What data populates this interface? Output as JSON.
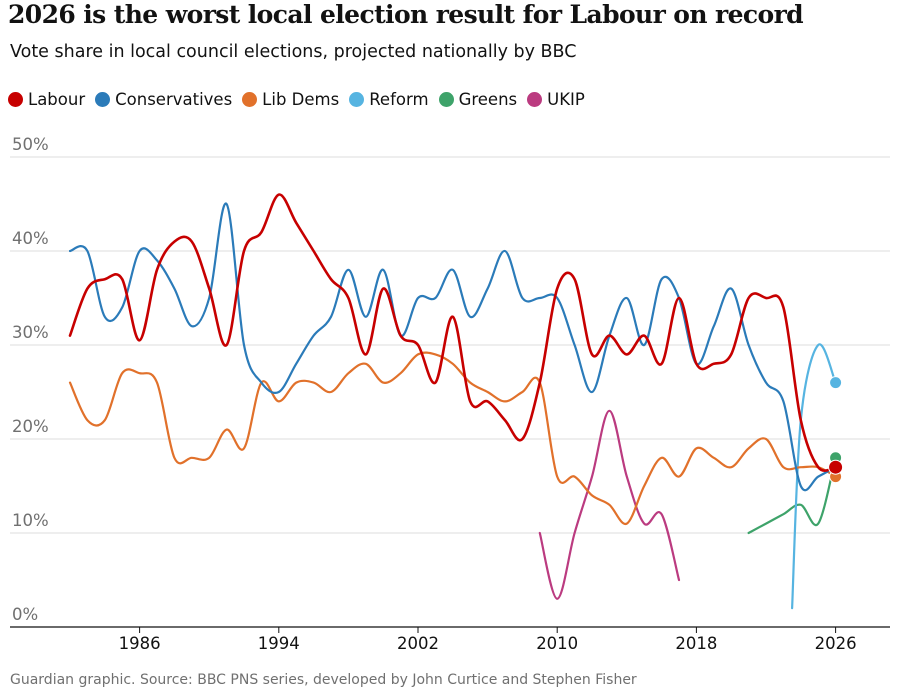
{
  "chart_data": {
    "type": "line",
    "title": "2026 is the worst local election result for Labour on record",
    "subtitle": "Vote share in local council elections, projected nationally by BBC",
    "source": "Guardian graphic. Source: BBC PNS series, developed by John Curtice and Stephen Fisher",
    "xlim": [
      1982,
      2027.5
    ],
    "ylim": [
      0,
      50
    ],
    "yticks": [
      0,
      10,
      20,
      30,
      40,
      50
    ],
    "ytick_labels": [
      "0%",
      "10%",
      "20%",
      "30%",
      "40%",
      "50%"
    ],
    "xticks": [
      1986,
      1994,
      2002,
      2010,
      2018,
      2026
    ],
    "xtick_labels": [
      "1986",
      "1994",
      "2002",
      "2010",
      "2018",
      "2026"
    ],
    "grid": true,
    "legend_position": "top-left",
    "series": [
      {
        "name": "Labour",
        "color": "#c70000",
        "points": [
          [
            1982,
            31
          ],
          [
            1983,
            36
          ],
          [
            1984,
            37
          ],
          [
            1985,
            37
          ],
          [
            1986,
            30.5
          ],
          [
            1987,
            38
          ],
          [
            1988,
            41
          ],
          [
            1989,
            41
          ],
          [
            1990,
            36
          ],
          [
            1991,
            30
          ],
          [
            1992,
            40
          ],
          [
            1993,
            42
          ],
          [
            1994,
            46
          ],
          [
            1995,
            43
          ],
          [
            1996,
            40
          ],
          [
            1997,
            37
          ],
          [
            1998,
            35
          ],
          [
            1999,
            29
          ],
          [
            2000,
            36
          ],
          [
            2001,
            31
          ],
          [
            2002,
            30
          ],
          [
            2003,
            26
          ],
          [
            2004,
            33
          ],
          [
            2005,
            24
          ],
          [
            2006,
            24
          ],
          [
            2007,
            22
          ],
          [
            2008,
            20
          ],
          [
            2009,
            26
          ],
          [
            2010,
            36
          ],
          [
            2011,
            37
          ],
          [
            2012,
            29
          ],
          [
            2013,
            31
          ],
          [
            2014,
            29
          ],
          [
            2015,
            31
          ],
          [
            2016,
            28
          ],
          [
            2017,
            35
          ],
          [
            2018,
            28
          ],
          [
            2019,
            28
          ],
          [
            2020,
            29
          ],
          [
            2021,
            35
          ],
          [
            2022,
            35
          ],
          [
            2023,
            34
          ],
          [
            2024,
            22
          ],
          [
            2025,
            17
          ],
          [
            2026,
            17
          ]
        ],
        "end_value": 17
      },
      {
        "name": "Conservatives",
        "color": "#2b7bb9",
        "points": [
          [
            1982,
            40
          ],
          [
            1983,
            40
          ],
          [
            1984,
            33
          ],
          [
            1985,
            34
          ],
          [
            1986,
            40
          ],
          [
            1987,
            39
          ],
          [
            1988,
            36
          ],
          [
            1989,
            32
          ],
          [
            1990,
            35
          ],
          [
            1991,
            45
          ],
          [
            1992,
            30
          ],
          [
            1993,
            26
          ],
          [
            1994,
            25
          ],
          [
            1995,
            28
          ],
          [
            1996,
            31
          ],
          [
            1997,
            33
          ],
          [
            1998,
            38
          ],
          [
            1999,
            33
          ],
          [
            2000,
            38
          ],
          [
            2001,
            31
          ],
          [
            2002,
            35
          ],
          [
            2003,
            35
          ],
          [
            2004,
            38
          ],
          [
            2005,
            33
          ],
          [
            2006,
            36
          ],
          [
            2007,
            40
          ],
          [
            2008,
            35
          ],
          [
            2009,
            35
          ],
          [
            2010,
            35
          ],
          [
            2011,
            30
          ],
          [
            2012,
            25
          ],
          [
            2013,
            31
          ],
          [
            2014,
            35
          ],
          [
            2015,
            30
          ],
          [
            2016,
            37
          ],
          [
            2017,
            35
          ],
          [
            2018,
            28
          ],
          [
            2019,
            32
          ],
          [
            2020,
            36
          ],
          [
            2021,
            30
          ],
          [
            2022,
            26
          ],
          [
            2023,
            24
          ],
          [
            2024,
            15
          ],
          [
            2025,
            16
          ],
          [
            2026,
            17
          ]
        ],
        "end_value": 17
      },
      {
        "name": "Lib Dems",
        "color": "#e1712b",
        "points": [
          [
            1982,
            26
          ],
          [
            1983,
            22
          ],
          [
            1984,
            22
          ],
          [
            1985,
            27
          ],
          [
            1986,
            27
          ],
          [
            1987,
            26
          ],
          [
            1988,
            18
          ],
          [
            1989,
            18
          ],
          [
            1990,
            18
          ],
          [
            1991,
            21
          ],
          [
            1992,
            19
          ],
          [
            1993,
            26
          ],
          [
            1994,
            24
          ],
          [
            1995,
            26
          ],
          [
            1996,
            26
          ],
          [
            1997,
            25
          ],
          [
            1998,
            27
          ],
          [
            1999,
            28
          ],
          [
            2000,
            26
          ],
          [
            2001,
            27
          ],
          [
            2002,
            29
          ],
          [
            2003,
            29
          ],
          [
            2004,
            28
          ],
          [
            2005,
            26
          ],
          [
            2006,
            25
          ],
          [
            2007,
            24
          ],
          [
            2008,
            25
          ],
          [
            2009,
            26
          ],
          [
            2010,
            16
          ],
          [
            2011,
            16
          ],
          [
            2012,
            14
          ],
          [
            2013,
            13
          ],
          [
            2014,
            11
          ],
          [
            2015,
            15
          ],
          [
            2016,
            18
          ],
          [
            2017,
            16
          ],
          [
            2018,
            19
          ],
          [
            2019,
            18
          ],
          [
            2020,
            17
          ],
          [
            2021,
            19
          ],
          [
            2022,
            20
          ],
          [
            2023,
            17
          ],
          [
            2024,
            17
          ],
          [
            2025,
            17
          ],
          [
            2026,
            16
          ]
        ],
        "end_value": 16
      },
      {
        "name": "Reform",
        "color": "#56b4e1",
        "points": [
          [
            2023.5,
            2
          ],
          [
            2024,
            22
          ],
          [
            2025,
            30
          ],
          [
            2026,
            26
          ]
        ],
        "end_value": 26
      },
      {
        "name": "Greens",
        "color": "#3ea36a",
        "points": [
          [
            2021,
            10
          ],
          [
            2022,
            11
          ],
          [
            2023,
            12
          ],
          [
            2024,
            13
          ],
          [
            2025,
            11
          ],
          [
            2026,
            18
          ]
        ],
        "end_value": 18
      },
      {
        "name": "UKIP",
        "color": "#bb3b80",
        "points": [
          [
            2009,
            10
          ],
          [
            2010,
            3
          ],
          [
            2011,
            10
          ],
          [
            2012,
            16
          ],
          [
            2013,
            23
          ],
          [
            2014,
            16
          ],
          [
            2015,
            11
          ],
          [
            2016,
            12
          ],
          [
            2017,
            5
          ]
        ]
      }
    ]
  }
}
